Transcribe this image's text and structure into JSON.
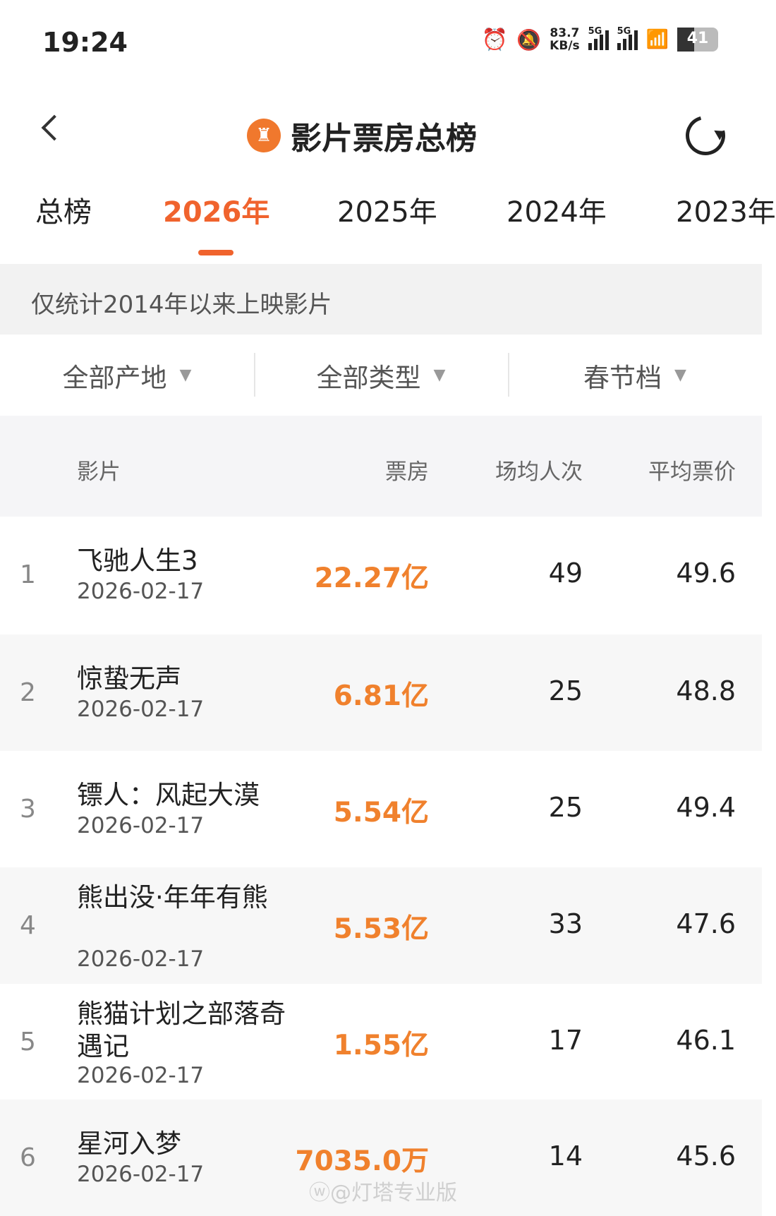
{
  "status_bar": {
    "time": "19:24",
    "net_speed_value": "83.7",
    "net_speed_unit": "KB/s",
    "sim1": "5G",
    "sim2": "5G",
    "battery": "41"
  },
  "header": {
    "title": "影片票房总榜",
    "logo_glyph": "♜"
  },
  "tabs": [
    {
      "label": "总榜"
    },
    {
      "label": "2026年",
      "active": true
    },
    {
      "label": "2025年"
    },
    {
      "label": "2024年"
    },
    {
      "label": "2023年"
    }
  ],
  "notice": "仅统计2014年以来上映影片",
  "filters": [
    {
      "label": "全部产地"
    },
    {
      "label": "全部类型"
    },
    {
      "label": "春节档"
    }
  ],
  "table": {
    "columns": [
      "影片",
      "票房",
      "场均人次",
      "平均票价"
    ],
    "rows": [
      {
        "rank": "1",
        "name": "飞驰人生3",
        "date": "2026-02-17",
        "box_office": "22.27亿",
        "avg_attendance": "49",
        "avg_price": "49.6"
      },
      {
        "rank": "2",
        "name": "惊蛰无声",
        "date": "2026-02-17",
        "box_office": "6.81亿",
        "avg_attendance": "25",
        "avg_price": "48.8"
      },
      {
        "rank": "3",
        "name": "镖人：风起大漠",
        "date": "2026-02-17",
        "box_office": "5.54亿",
        "avg_attendance": "25",
        "avg_price": "49.4"
      },
      {
        "rank": "4",
        "name": "熊出没·年年有熊",
        "date": "2026-02-17",
        "box_office": "5.53亿",
        "avg_attendance": "33",
        "avg_price": "47.6"
      },
      {
        "rank": "5",
        "name": "熊猫计划之部落奇遇记",
        "date": "2026-02-17",
        "box_office": "1.55亿",
        "avg_attendance": "17",
        "avg_price": "46.1"
      },
      {
        "rank": "6",
        "name": "星河入梦",
        "date": "2026-02-17",
        "box_office": "7035.0万",
        "avg_attendance": "14",
        "avg_price": "45.6"
      }
    ]
  },
  "watermark": "@灯塔专业版",
  "colors": {
    "accent": "#f0632d",
    "box_office": "#f0812d"
  }
}
